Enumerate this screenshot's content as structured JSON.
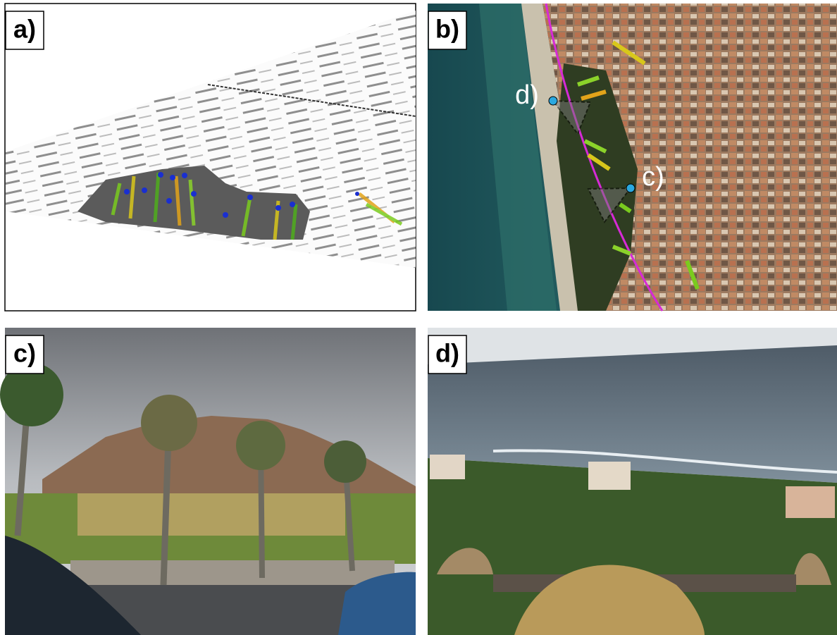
{
  "panels": [
    {
      "label": "a)"
    },
    {
      "label": "b)",
      "annotations": [
        "d)",
        "c)"
      ]
    },
    {
      "label": "c)"
    },
    {
      "label": "d)"
    }
  ]
}
